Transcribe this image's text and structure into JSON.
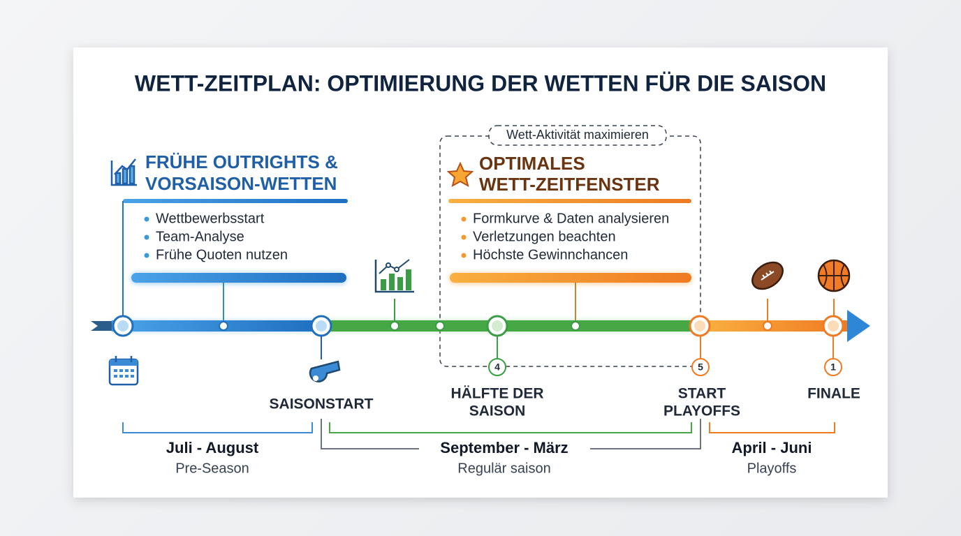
{
  "title": "WETT-ZEITPLAN: OPTIMIERUNG DER WETTEN FÜR DIE SAISON",
  "early": {
    "title_lines": [
      "FRÜHE OUTRIGHTS &",
      "VORSAISON-WETTEN"
    ],
    "bullets": [
      "Wettbewerbsstart",
      "Team-Analyse",
      "Frühe Quoten nutzen"
    ]
  },
  "optimal": {
    "badge": "Wett-Aktivität maximieren",
    "title_lines": [
      "OPTIMALES",
      "WETT-ZEITFENSTER"
    ],
    "bullets": [
      "Formkurve & Daten analysieren",
      "Verletzungen beachten",
      "Höchste Gewinnchancen"
    ]
  },
  "milestones": [
    {
      "label_lines": [
        "SAISONSTART"
      ]
    },
    {
      "number": "4",
      "label_lines": [
        "HÄLFTE DER",
        "SAISON"
      ]
    },
    {
      "number": "5",
      "label_lines": [
        "START",
        "PLAYOFFS"
      ]
    },
    {
      "number": "1",
      "label_lines": [
        "FINALE"
      ]
    }
  ],
  "periods": [
    {
      "range": "Juli - August",
      "name": "Pre-Season"
    },
    {
      "range": "September - März",
      "name": "Regulär saison"
    },
    {
      "range": "April - Juni",
      "name": "Playoffs"
    }
  ]
}
